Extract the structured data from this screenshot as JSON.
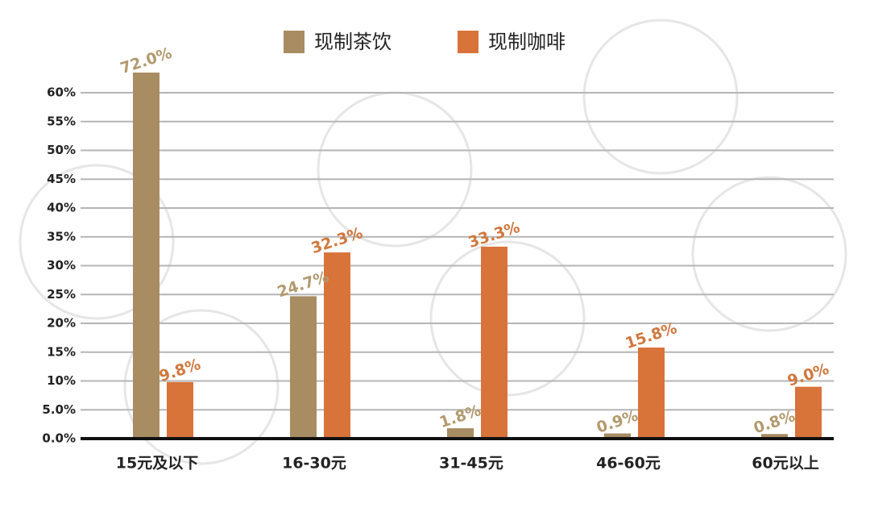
{
  "chart_data": {
    "type": "bar",
    "categories": [
      "15元及以下",
      "16-30元",
      "31-45元",
      "46-60元",
      "60元以上"
    ],
    "series": [
      {
        "name": "现制茶饮",
        "color": "#a88c62",
        "values": [
          72.0,
          24.7,
          1.8,
          0.9,
          0.8
        ],
        "value_labels": [
          "72.0%",
          "24.7%",
          "1.8%",
          "0.9%",
          "0.8%"
        ]
      },
      {
        "name": "现制咖啡",
        "color": "#d8733a",
        "values": [
          9.8,
          32.3,
          33.3,
          15.8,
          9.0
        ],
        "value_labels": [
          "9.8%",
          "32.3%",
          "33.3%",
          "15.8%",
          "9.0%"
        ]
      }
    ],
    "ylim": [
      0,
      63.5
    ],
    "yticks": [
      {
        "value": 0,
        "label": "0.0%"
      },
      {
        "value": 5,
        "label": "5.0%"
      },
      {
        "value": 10,
        "label": "10%"
      },
      {
        "value": 15,
        "label": "15%"
      },
      {
        "value": 20,
        "label": "20%"
      },
      {
        "value": 25,
        "label": "25%"
      },
      {
        "value": 30,
        "label": "30%"
      },
      {
        "value": 35,
        "label": "35%"
      },
      {
        "value": 40,
        "label": "40%"
      },
      {
        "value": 45,
        "label": "45%"
      },
      {
        "value": 50,
        "label": "50%"
      },
      {
        "value": 55,
        "label": "55%"
      },
      {
        "value": 60,
        "label": "60%"
      }
    ],
    "grid": true
  }
}
